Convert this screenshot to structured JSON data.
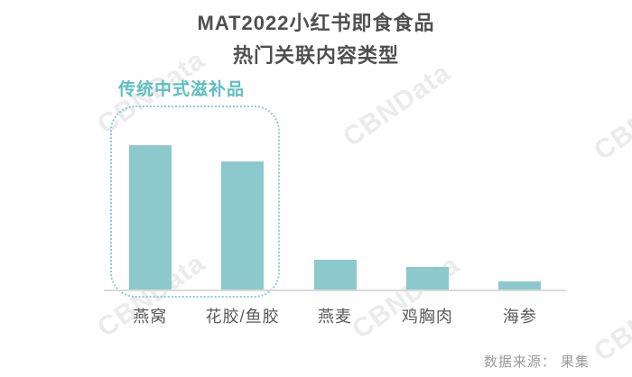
{
  "title": {
    "line1": "MAT2022小红书即食食品",
    "line2": "热门关联内容类型"
  },
  "annotation": {
    "label": "传统中式滋补品",
    "grouped_categories": [
      "燕窝",
      "花胶/鱼胶"
    ]
  },
  "chart_data": {
    "type": "bar",
    "categories": [
      "燕窝",
      "花胶/鱼胶",
      "燕麦",
      "鸡胸肉",
      "海参"
    ],
    "values": [
      100,
      89,
      21,
      16,
      6
    ],
    "title": "MAT2022小红书即食食品 热门关联内容类型",
    "xlabel": "",
    "ylabel": "",
    "ylim": [
      0,
      100
    ],
    "value_axis_visible": false,
    "grid": false,
    "legend": false,
    "bar_color": "#8bc9cc",
    "highlight_group": {
      "label": "传统中式滋补品",
      "categories": [
        "燕窝",
        "花胶/鱼胶"
      ],
      "style": "teal dashed rounded outline"
    }
  },
  "source": {
    "text": "数据来源： 果集"
  },
  "watermark": {
    "text": "CBNData"
  },
  "colors": {
    "bar": "#8bc9cc",
    "annotation_teal": "#5ebec2",
    "dashed_border": "#8fccd0",
    "title_text": "#4f4f4f",
    "axis_line": "#dadada",
    "label_text": "#595959",
    "source_text": "#9a9a9a",
    "watermark": "#ebebeb",
    "background": "#ffffff"
  }
}
